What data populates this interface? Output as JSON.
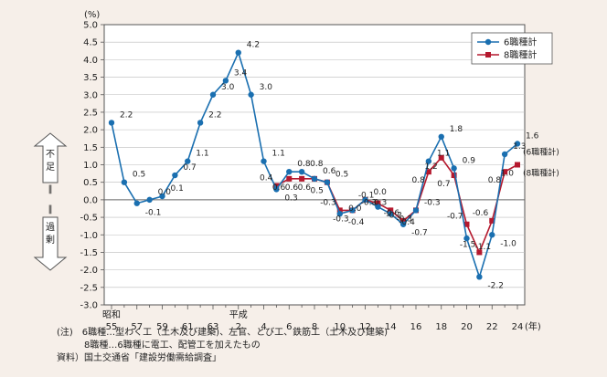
{
  "chart_data": {
    "type": "line",
    "unit_label": "(%)",
    "x_axis_suffix": "(年)",
    "x_era_labels": [
      {
        "label": "昭和",
        "year": 55
      },
      {
        "label": "平成",
        "year": 2
      }
    ],
    "x_tick_labels": [
      "55",
      "57",
      "59",
      "61",
      "63",
      "2",
      "4",
      "6",
      "8",
      "10",
      "12",
      "14",
      "16",
      "18",
      "20",
      "22",
      "24"
    ],
    "ylim": [
      -3.0,
      5.0
    ],
    "y_ticks": [
      "5.0",
      "4.5",
      "4.0",
      "3.5",
      "3.0",
      "2.5",
      "2.0",
      "1.5",
      "1.0",
      "0.5",
      "0.0",
      "-0.5",
      "-1.0",
      "-1.5",
      "-2.0",
      "-2.5",
      "-3.0"
    ],
    "side_labels": {
      "upper": "不足",
      "lower": "過剰"
    },
    "legend_position": "top-right",
    "series": [
      {
        "name": "6職種計",
        "color": "#1a6fb0",
        "end_label": "(6職種計)",
        "start_index": 0,
        "values": [
          2.2,
          0.5,
          -0.1,
          0.0,
          0.1,
          0.7,
          1.1,
          2.2,
          3.0,
          3.4,
          4.2,
          3.0,
          1.1,
          0.3,
          0.8,
          0.8,
          0.6,
          0.5,
          -0.4,
          -0.3,
          0.0,
          -0.2,
          -0.4,
          -0.7,
          -0.3,
          1.1,
          1.8,
          0.9,
          -1.1,
          -2.2,
          -1.0,
          1.3,
          1.6
        ],
        "value_labels": [
          "2.2",
          "0.5",
          "-0.1",
          "0.0",
          "0.1",
          "0.7",
          "1.1",
          "2.2",
          "3.0",
          "3.4",
          "4.2",
          "3.0",
          "1.1",
          "0.3",
          "0.8",
          "0.8",
          "0.6",
          "0.5",
          "-0.4",
          "-0.3",
          "0.0",
          "-0.2",
          "-0.4",
          "-0.7",
          "-0.3",
          "1.1",
          "1.8",
          "0.9",
          "-1.1",
          "-2.2",
          "-1.0",
          "1.3",
          "1.6"
        ]
      },
      {
        "name": "8職種計",
        "color": "#b5192e",
        "end_label": "(8職種計)",
        "start_index": 13,
        "values": [
          0.4,
          0.6,
          0.6,
          0.6,
          0.5,
          -0.3,
          -0.3,
          0.0,
          -0.1,
          -0.3,
          -0.6,
          -0.3,
          0.8,
          1.2,
          0.7,
          -0.7,
          -1.5,
          -0.6,
          0.8,
          1.0
        ],
        "value_labels": [
          "0.4",
          "0.6",
          "0.6",
          "0.6",
          "0.5",
          "-0.3",
          "-0.3",
          "0.0",
          "-0.1",
          "-0.3",
          "-0.6",
          "-0.3",
          "0.8",
          "1.2",
          "0.7",
          "-0.7",
          "-1.5",
          "-0.6",
          "0.8",
          "1.0"
        ]
      }
    ]
  },
  "notes": {
    "line1": "(注)　6職種…型わく工（土木及び建築)、左官、とび工、鉄筋工（土木及び建築)",
    "line2": "　　　8職種…6職種に電工、配管工を加えたもの",
    "line3": "資料）国土交通省「建設労働需給調査」"
  }
}
